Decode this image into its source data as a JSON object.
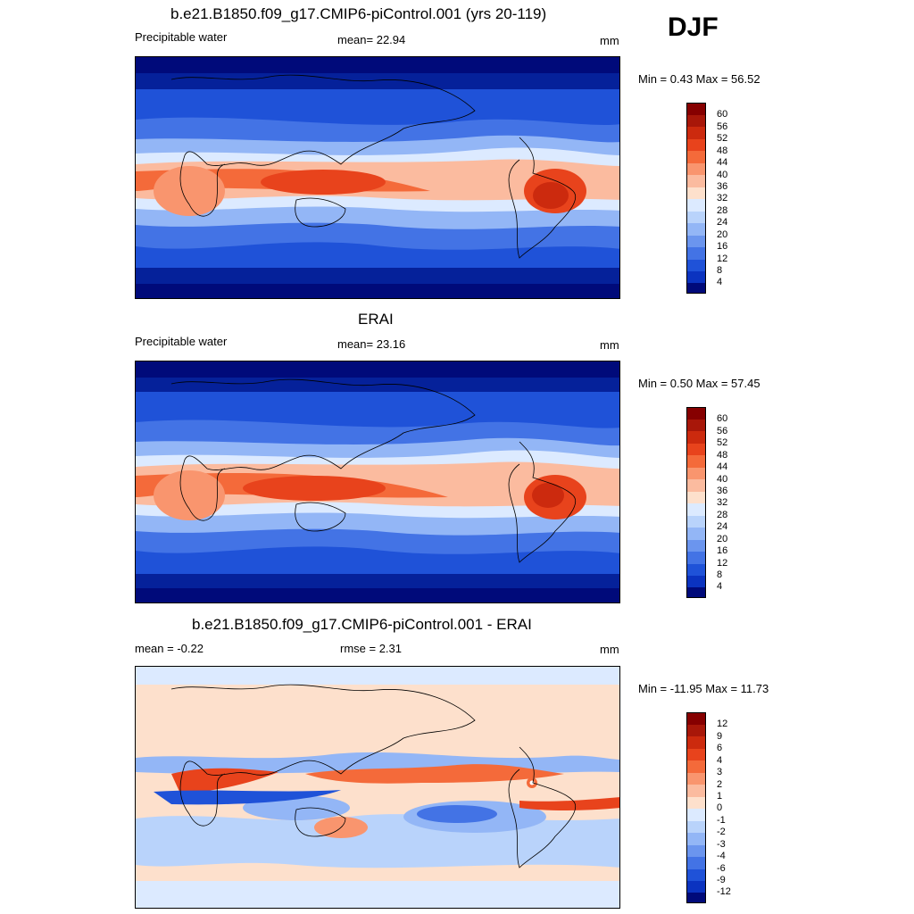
{
  "season": "DJF",
  "colors": {
    "pos": [
      "#fde0cc",
      "#fbbb9f",
      "#f9956e",
      "#f46a3a",
      "#e8431c",
      "#cc2a0e",
      "#a81709",
      "#860000"
    ],
    "neg": [
      "#dceaff",
      "#b9d3fb",
      "#93b6f6",
      "#6b95ee",
      "#4373e5",
      "#1f52d8",
      "#0b33c0",
      "#05219a",
      "#000a7a"
    ]
  },
  "panels": [
    {
      "title": "b.e21.B1850.f09_g17.CMIP6-piControl.001 (yrs 20-119)",
      "left_label": "Precipitable water",
      "center_label": "mean=  22.94",
      "units": "mm",
      "minmax": "Min =   0.43 Max =  56.52",
      "colorbar_labels": [
        "60",
        "56",
        "52",
        "48",
        "44",
        "40",
        "36",
        "32",
        "28",
        "24",
        "20",
        "16",
        "12",
        "8",
        "4"
      ]
    },
    {
      "title": "ERAI",
      "left_label": "Precipitable water",
      "center_label": "mean=  23.16",
      "units": "mm",
      "minmax": "Min =   0.50 Max =  57.45",
      "colorbar_labels": [
        "60",
        "56",
        "52",
        "48",
        "44",
        "40",
        "36",
        "32",
        "28",
        "24",
        "20",
        "16",
        "12",
        "8",
        "4"
      ]
    },
    {
      "title": "b.e21.B1850.f09_g17.CMIP6-piControl.001 - ERAI",
      "left_label": "mean =  -0.22",
      "center_label": "rmse =   2.31",
      "units": "mm",
      "minmax": "Min = -11.95 Max =  11.73",
      "colorbar_labels": [
        "12",
        "9",
        "6",
        "4",
        "3",
        "2",
        "1",
        "0",
        "-1",
        "-2",
        "-3",
        "-4",
        "-6",
        "-9",
        "-12"
      ]
    }
  ]
}
